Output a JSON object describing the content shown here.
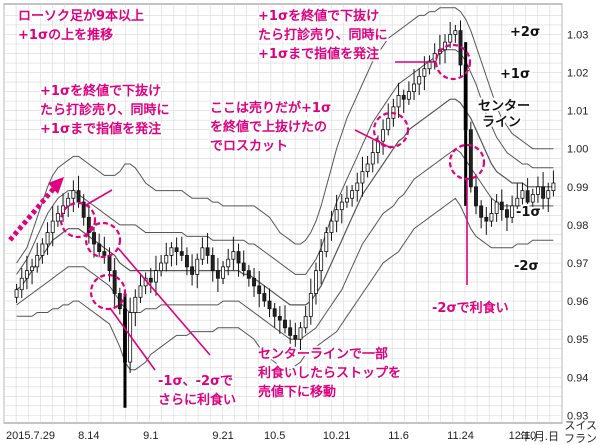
{
  "colors": {
    "accent": "#e0007f",
    "candle_up": "#ffffff",
    "candle_down": "#222222",
    "band": "#555555",
    "grid": "#d8d8d8"
  },
  "chart_data": {
    "type": "candlestick",
    "ylim": [
      0.928,
      1.038
    ],
    "y_ticks": [
      "0.93",
      "0.94",
      "0.95",
      "0.96",
      "0.97",
      "0.98",
      "0.99",
      "1.00",
      "1.01",
      "1.02",
      "1.03"
    ],
    "y_tick_values": [
      0.93,
      0.94,
      0.95,
      0.96,
      0.97,
      0.98,
      0.99,
      1.0,
      1.01,
      1.02,
      1.03
    ],
    "x_ticks": [
      "2015.7.29",
      "8.14",
      "9.1",
      "9.21",
      "10.5",
      "10.21",
      "11.6",
      "11.24",
      "12.10"
    ],
    "x_tick_index": [
      0,
      14,
      26,
      40,
      50,
      62,
      74,
      86,
      98
    ],
    "axis_unit_x": "年.月.日",
    "axis_unit_y": "スイスフラン",
    "close": [
      0.963,
      0.966,
      0.968,
      0.969,
      0.972,
      0.975,
      0.978,
      0.981,
      0.983,
      0.985,
      0.987,
      0.989,
      0.986,
      0.982,
      0.978,
      0.975,
      0.973,
      0.972,
      0.968,
      0.962,
      0.958,
      0.944,
      0.957,
      0.961,
      0.964,
      0.966,
      0.965,
      0.968,
      0.97,
      0.972,
      0.974,
      0.973,
      0.972,
      0.969,
      0.967,
      0.971,
      0.974,
      0.972,
      0.968,
      0.966,
      0.969,
      0.971,
      0.973,
      0.97,
      0.968,
      0.966,
      0.964,
      0.962,
      0.96,
      0.958,
      0.956,
      0.955,
      0.953,
      0.951,
      0.95,
      0.953,
      0.956,
      0.962,
      0.968,
      0.973,
      0.978,
      0.981,
      0.984,
      0.986,
      0.987,
      0.989,
      0.991,
      0.994,
      0.996,
      0.999,
      1.002,
      1.005,
      1.008,
      1.011,
      1.014,
      1.013,
      1.015,
      1.017,
      1.019,
      1.021,
      1.023,
      1.025,
      1.026,
      1.028,
      1.03,
      1.031,
      1.022,
      1.005,
      0.99,
      0.985,
      0.982,
      0.981,
      0.983,
      0.986,
      0.984,
      0.982,
      0.985,
      0.987,
      0.989,
      0.986,
      0.988,
      0.99,
      0.987,
      0.989,
      0.991
    ],
    "bands": {
      "upper2": [
        0.97,
        0.972,
        0.974,
        0.978,
        0.982,
        0.986,
        0.99,
        0.993,
        0.995,
        0.996,
        0.997,
        0.998,
        0.998,
        0.997,
        0.996,
        0.995,
        0.994,
        0.993,
        0.993,
        0.993,
        0.994,
        0.996,
        0.996,
        0.995,
        0.993,
        0.991,
        0.99,
        0.989,
        0.989,
        0.989,
        0.989,
        0.989,
        0.989,
        0.988,
        0.987,
        0.987,
        0.987,
        0.987,
        0.986,
        0.986,
        0.985,
        0.985,
        0.985,
        0.985,
        0.985,
        0.985,
        0.985,
        0.984,
        0.983,
        0.982,
        0.98,
        0.978,
        0.977,
        0.976,
        0.975,
        0.975,
        0.976,
        0.978,
        0.981,
        0.985,
        0.99,
        0.995,
        1.0,
        1.004,
        1.008,
        1.011,
        1.014,
        1.017,
        1.02,
        1.023,
        1.025,
        1.027,
        1.029,
        1.03,
        1.031,
        1.032,
        1.033,
        1.034,
        1.035,
        1.035,
        1.036,
        1.036,
        1.037,
        1.037,
        1.037,
        1.037,
        1.036,
        1.034,
        1.031,
        1.027,
        1.023,
        1.019,
        1.015,
        1.011,
        1.008,
        1.006,
        1.004,
        1.003,
        1.002,
        1.001,
        1.0,
        1.0,
        1.0,
        1.0,
        1.0
      ],
      "upper1": [
        0.967,
        0.969,
        0.971,
        0.974,
        0.977,
        0.98,
        0.983,
        0.985,
        0.987,
        0.988,
        0.989,
        0.989,
        0.988,
        0.987,
        0.986,
        0.985,
        0.984,
        0.983,
        0.982,
        0.981,
        0.98,
        0.98,
        0.98,
        0.98,
        0.979,
        0.978,
        0.978,
        0.978,
        0.978,
        0.978,
        0.978,
        0.978,
        0.978,
        0.977,
        0.977,
        0.977,
        0.977,
        0.977,
        0.976,
        0.976,
        0.976,
        0.976,
        0.976,
        0.976,
        0.976,
        0.975,
        0.975,
        0.974,
        0.973,
        0.972,
        0.971,
        0.97,
        0.969,
        0.968,
        0.967,
        0.967,
        0.967,
        0.969,
        0.971,
        0.974,
        0.978,
        0.982,
        0.986,
        0.989,
        0.992,
        0.995,
        0.998,
        1.001,
        1.004,
        1.007,
        1.009,
        1.011,
        1.013,
        1.015,
        1.017,
        1.018,
        1.019,
        1.02,
        1.021,
        1.022,
        1.023,
        1.024,
        1.025,
        1.026,
        1.026,
        1.026,
        1.025,
        1.023,
        1.02,
        1.017,
        1.013,
        1.009,
        1.006,
        1.003,
        1.001,
        0.999,
        0.998,
        0.997,
        0.996,
        0.996,
        0.995,
        0.995,
        0.995,
        0.995,
        0.995
      ],
      "center": [
        0.963,
        0.964,
        0.966,
        0.968,
        0.97,
        0.972,
        0.974,
        0.976,
        0.977,
        0.978,
        0.979,
        0.979,
        0.979,
        0.978,
        0.977,
        0.976,
        0.975,
        0.974,
        0.973,
        0.972,
        0.97,
        0.969,
        0.968,
        0.968,
        0.968,
        0.968,
        0.968,
        0.968,
        0.968,
        0.968,
        0.968,
        0.968,
        0.968,
        0.968,
        0.968,
        0.968,
        0.968,
        0.968,
        0.968,
        0.968,
        0.968,
        0.968,
        0.968,
        0.968,
        0.967,
        0.967,
        0.966,
        0.965,
        0.964,
        0.963,
        0.962,
        0.961,
        0.96,
        0.959,
        0.959,
        0.959,
        0.959,
        0.96,
        0.962,
        0.964,
        0.967,
        0.97,
        0.973,
        0.976,
        0.979,
        0.982,
        0.985,
        0.988,
        0.99,
        0.992,
        0.994,
        0.996,
        0.998,
        1.0,
        1.002,
        1.003,
        1.005,
        1.006,
        1.007,
        1.008,
        1.009,
        1.01,
        1.011,
        1.012,
        1.013,
        1.013,
        1.012,
        1.01,
        1.008,
        1.005,
        1.002,
        0.999,
        0.996,
        0.994,
        0.993,
        0.992,
        0.991,
        0.991,
        0.991,
        0.99,
        0.99,
        0.99,
        0.99,
        0.99,
        0.99
      ],
      "lower1": [
        0.959,
        0.96,
        0.961,
        0.962,
        0.963,
        0.964,
        0.965,
        0.966,
        0.967,
        0.968,
        0.969,
        0.969,
        0.969,
        0.969,
        0.968,
        0.967,
        0.966,
        0.965,
        0.964,
        0.962,
        0.96,
        0.958,
        0.957,
        0.957,
        0.957,
        0.958,
        0.958,
        0.958,
        0.959,
        0.959,
        0.959,
        0.959,
        0.959,
        0.959,
        0.959,
        0.959,
        0.959,
        0.959,
        0.959,
        0.959,
        0.96,
        0.96,
        0.96,
        0.96,
        0.959,
        0.958,
        0.957,
        0.956,
        0.955,
        0.954,
        0.953,
        0.952,
        0.951,
        0.95,
        0.95,
        0.95,
        0.951,
        0.952,
        0.953,
        0.955,
        0.957,
        0.959,
        0.961,
        0.963,
        0.966,
        0.969,
        0.972,
        0.975,
        0.977,
        0.979,
        0.981,
        0.983,
        0.984,
        0.985,
        0.987,
        0.988,
        0.99,
        0.992,
        0.993,
        0.994,
        0.995,
        0.996,
        0.997,
        0.998,
        0.999,
        1.0,
        0.999,
        0.997,
        0.995,
        0.993,
        0.991,
        0.989,
        0.987,
        0.986,
        0.985,
        0.985,
        0.985,
        0.985,
        0.985,
        0.985,
        0.985,
        0.985,
        0.985,
        0.985,
        0.985
      ],
      "lower2": [
        0.956,
        0.956,
        0.956,
        0.956,
        0.957,
        0.957,
        0.957,
        0.958,
        0.958,
        0.959,
        0.959,
        0.96,
        0.96,
        0.959,
        0.958,
        0.957,
        0.956,
        0.955,
        0.954,
        0.951,
        0.948,
        0.944,
        0.942,
        0.942,
        0.943,
        0.944,
        0.946,
        0.947,
        0.948,
        0.949,
        0.95,
        0.951,
        0.951,
        0.951,
        0.952,
        0.952,
        0.952,
        0.952,
        0.952,
        0.953,
        0.953,
        0.953,
        0.953,
        0.953,
        0.952,
        0.951,
        0.95,
        0.948,
        0.946,
        0.945,
        0.944,
        0.943,
        0.942,
        0.942,
        0.943,
        0.944,
        0.946,
        0.947,
        0.948,
        0.949,
        0.95,
        0.951,
        0.952,
        0.954,
        0.956,
        0.958,
        0.96,
        0.962,
        0.964,
        0.966,
        0.968,
        0.97,
        0.971,
        0.972,
        0.973,
        0.975,
        0.977,
        0.979,
        0.98,
        0.981,
        0.982,
        0.983,
        0.984,
        0.985,
        0.986,
        0.987,
        0.985,
        0.982,
        0.979,
        0.977,
        0.976,
        0.975,
        0.974,
        0.974,
        0.974,
        0.974,
        0.974,
        0.975,
        0.975,
        0.975,
        0.976,
        0.976,
        0.976,
        0.976,
        0.976
      ]
    },
    "band_labels": {
      "upper2": "+2σ",
      "upper1": "+1σ",
      "center": "センターライン",
      "lower1": "-1σ",
      "lower2": "-2σ"
    }
  },
  "annotations": {
    "a1": "ローソク足が9本以上\n+1σの上を推移",
    "a2": "+1σを終値で下抜け\nたら打診売り、同時に\n+1σまで指値を発注",
    "a3": "+1σを終値で下抜け\nたら打診売り、同時に\n+1σまで指値を発注",
    "a4": "ここは売りだが+1σ\nを終値で上抜けたの\nでロスカット",
    "a5": "センターラインで一部\n利食いしたらストップを\n売値下に移動",
    "a6": "-1σ、-2σで\nさらに利食い",
    "a7": "-2σで利食い"
  }
}
